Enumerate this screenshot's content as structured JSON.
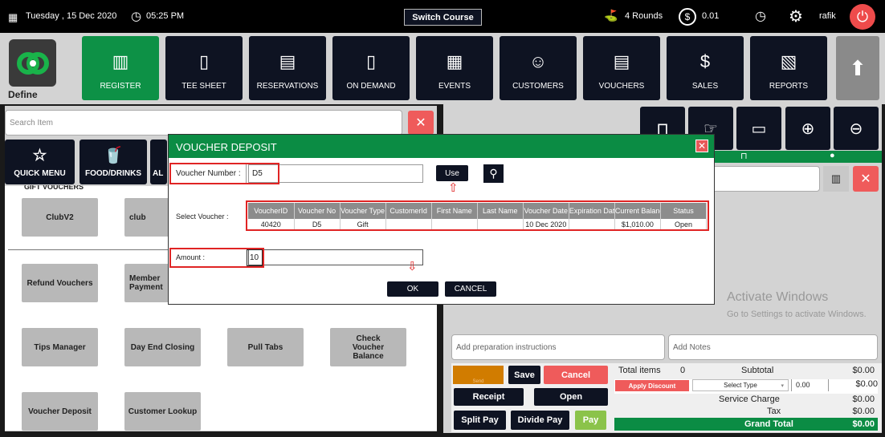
{
  "topbar": {
    "date": "Tuesday ,  15 Dec 2020",
    "time": "05:25 PM",
    "switch_course": "Switch Course",
    "rounds": "4 Rounds",
    "balance": "0.01",
    "user": "rafik"
  },
  "logo": {
    "label": "Define"
  },
  "nav": [
    {
      "label": "REGISTER",
      "icon": "barcode-scanner-icon"
    },
    {
      "label": "TEE SHEET",
      "icon": "tee-sheet-icon"
    },
    {
      "label": "RESERVATIONS",
      "icon": "calendar-icon"
    },
    {
      "label": "ON DEMAND",
      "icon": "phone-icon"
    },
    {
      "label": "EVENTS",
      "icon": "events-icon"
    },
    {
      "label": "CUSTOMERS",
      "icon": "users-icon"
    },
    {
      "label": "VOUCHERS",
      "icon": "voucher-icon"
    },
    {
      "label": "SALES",
      "icon": "sales-icon"
    },
    {
      "label": "REPORTS",
      "icon": "reports-icon"
    }
  ],
  "left": {
    "search_placeholder": "Search Item",
    "categories": [
      {
        "label": "QUICK MENU",
        "icon": "star-icon"
      },
      {
        "label": "FOOD/DRINKS",
        "icon": "food-drinks-icon"
      },
      {
        "label": "AL",
        "icon": ""
      }
    ],
    "section": "GIFT VOUCHERS",
    "tiles": [
      "ClubV2",
      "club",
      "Refund Vouchers",
      "Member Payment",
      "Tips Manager",
      "Day End Closing",
      "Pull Tabs",
      "Check Voucher Balance",
      "Voucher Deposit",
      "Customer Lookup"
    ]
  },
  "right": {
    "prep_placeholder": "Add preparation instructions",
    "notes_placeholder": "Add Notes",
    "send": "Send",
    "save": "Save",
    "cancel": "Cancel",
    "receipt": "Receipt",
    "open": "Open",
    "split_pay": "Split Pay",
    "divide_pay": "Divide Pay",
    "pay": "Pay",
    "total_items_label": "Total items",
    "total_items": "0",
    "subtotal_label": "Subtotal",
    "subtotal": "$0.00",
    "apply_discount": "Apply Discount",
    "select_type": "Select Type",
    "discount_value": "0.00",
    "discount": "$0.00",
    "service_charge_label": "Service Charge",
    "service_charge": "$0.00",
    "tax_label": "Tax",
    "tax": "$0.00",
    "grand_total_label": "Grand Total",
    "grand_total": "$0.00",
    "watermark1": "Activate Windows",
    "watermark2": "Go to Settings to activate Windows."
  },
  "modal": {
    "title": "VOUCHER DEPOSIT",
    "voucher_number_label": "Voucher Number :",
    "voucher_number": "D5",
    "use": "Use",
    "select_voucher_label": "Select Voucher :",
    "columns": [
      "VoucherID",
      "Voucher No",
      "Voucher Type",
      "CustomerId",
      "First Name",
      "Last Name",
      "Voucher Date",
      "Expiration Date",
      "Current Balance",
      "Status"
    ],
    "rows": [
      [
        "40420",
        "D5",
        "Gift",
        "",
        "",
        "",
        "10 Dec 2020",
        "",
        "$1,010.00",
        "Open"
      ]
    ],
    "amount_label": "Amount :",
    "amount": "10",
    "ok": "OK",
    "cancel": "CANCEL"
  },
  "colors": {
    "green": "#0d9146",
    "navy": "#0e1322",
    "red": "#ef5b5b",
    "highlight": "#e02424"
  }
}
